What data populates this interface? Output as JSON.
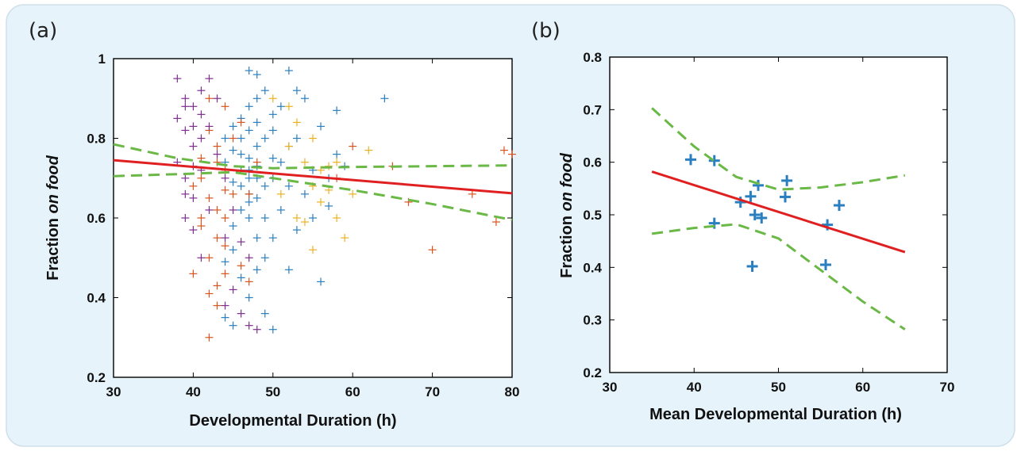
{
  "colors": {
    "background_panel": "#e6f3fa",
    "panel_border": "#cfe0ea",
    "fit_line": "#e02020",
    "confidence_band": "#6ab845",
    "series_blue": "#2a7fc1",
    "series_orange": "#d9541e",
    "series_yellow": "#edb120",
    "series_purple": "#7e2f8e"
  },
  "chart_data": [
    {
      "panel_label": "(a)",
      "type": "scatter",
      "xlabel": "Developmental Duration (h)",
      "ylabel": {
        "prefix": "Fraction ",
        "italic": "on food"
      },
      "xlim": [
        30,
        80
      ],
      "ylim": [
        0.2,
        1.0
      ],
      "xticks": [
        "30",
        "40",
        "50",
        "60",
        "70",
        "80"
      ],
      "yticks": [
        "0.2",
        "0.4",
        "0.6",
        "0.8",
        "1"
      ],
      "grid": false,
      "series": [
        {
          "color": "#2a7fc1",
          "points": [
            [
              46,
              0.85
            ],
            [
              47,
              0.82
            ],
            [
              48,
              0.9
            ],
            [
              45,
              0.77
            ],
            [
              47,
              0.75
            ],
            [
              49,
              0.8
            ],
            [
              50,
              0.86
            ],
            [
              48,
              0.7
            ],
            [
              46,
              0.68
            ],
            [
              47,
              0.64
            ],
            [
              52,
              0.78
            ],
            [
              53,
              0.92
            ],
            [
              51,
              0.88
            ],
            [
              49,
              0.92
            ],
            [
              48,
              0.96
            ],
            [
              47,
              0.97
            ],
            [
              52,
              0.97
            ],
            [
              54,
              0.9
            ],
            [
              50,
              0.75
            ],
            [
              46,
              0.72
            ],
            [
              47,
              0.6
            ],
            [
              45,
              0.58
            ],
            [
              48,
              0.55
            ],
            [
              49,
              0.5
            ],
            [
              46,
              0.45
            ],
            [
              47,
              0.4
            ],
            [
              44,
              0.35
            ],
            [
              45,
              0.33
            ],
            [
              49,
              0.36
            ],
            [
              50,
              0.32
            ],
            [
              52,
              0.47
            ],
            [
              56,
              0.44
            ],
            [
              55,
              0.6
            ],
            [
              57,
              0.7
            ],
            [
              58,
              0.76
            ],
            [
              56,
              0.83
            ],
            [
              58,
              0.87
            ],
            [
              64,
              0.9
            ],
            [
              59,
              0.73
            ],
            [
              54,
              0.66
            ],
            [
              51,
              0.62
            ],
            [
              50,
              0.55
            ],
            [
              48,
              0.65
            ],
            [
              47,
              0.72
            ],
            [
              48,
              0.78
            ],
            [
              46,
              0.8
            ],
            [
              45,
              0.69
            ],
            [
              44,
              0.74
            ],
            [
              47,
              0.88
            ],
            [
              48,
              0.84
            ],
            [
              50,
              0.7
            ],
            [
              51,
              0.74
            ],
            [
              49,
              0.6
            ],
            [
              46,
              0.62
            ],
            [
              45,
              0.52
            ],
            [
              48,
              0.47
            ],
            [
              44,
              0.49
            ],
            [
              53,
              0.8
            ],
            [
              55,
              0.72
            ],
            [
              57,
              0.63
            ],
            [
              50,
              0.82
            ],
            [
              49,
              0.68
            ],
            [
              47,
              0.7
            ],
            [
              46,
              0.76
            ],
            [
              48,
              0.73
            ],
            [
              52,
              0.68
            ],
            [
              53,
              0.57
            ],
            [
              45,
              0.83
            ],
            [
              44,
              0.8
            ],
            [
              47,
              0.66
            ]
          ]
        },
        {
          "color": "#d9541e",
          "points": [
            [
              42,
              0.82
            ],
            [
              43,
              0.78
            ],
            [
              44,
              0.72
            ],
            [
              41,
              0.7
            ],
            [
              42,
              0.65
            ],
            [
              43,
              0.62
            ],
            [
              44,
              0.6
            ],
            [
              40,
              0.68
            ],
            [
              41,
              0.58
            ],
            [
              43,
              0.55
            ],
            [
              42,
              0.5
            ],
            [
              44,
              0.46
            ],
            [
              43,
              0.43
            ],
            [
              42,
              0.41
            ],
            [
              43,
              0.38
            ],
            [
              42,
              0.3
            ],
            [
              45,
              0.8
            ],
            [
              46,
              0.84
            ],
            [
              44,
              0.88
            ],
            [
              42,
              0.9
            ],
            [
              45,
              0.66
            ],
            [
              40,
              0.46
            ],
            [
              46,
              0.48
            ],
            [
              47,
              0.44
            ],
            [
              44,
              0.53
            ],
            [
              41,
              0.6
            ],
            [
              47,
              0.66
            ],
            [
              48,
              0.74
            ],
            [
              78,
              0.59
            ],
            [
              79,
              0.77
            ],
            [
              80,
              0.76
            ],
            [
              75,
              0.66
            ],
            [
              70,
              0.52
            ],
            [
              67,
              0.64
            ],
            [
              65,
              0.73
            ],
            [
              60,
              0.78
            ],
            [
              58,
              0.7
            ],
            [
              43,
              0.74
            ],
            [
              44,
              0.67
            ],
            [
              41,
              0.75
            ]
          ]
        },
        {
          "color": "#edb120",
          "points": [
            [
              52,
              0.78
            ],
            [
              54,
              0.74
            ],
            [
              55,
              0.68
            ],
            [
              53,
              0.84
            ],
            [
              56,
              0.64
            ],
            [
              58,
              0.6
            ],
            [
              59,
              0.55
            ],
            [
              57,
              0.67
            ],
            [
              55,
              0.52
            ],
            [
              53,
              0.6
            ],
            [
              51,
              0.66
            ],
            [
              54,
              0.59
            ],
            [
              56,
              0.72
            ],
            [
              60,
              0.66
            ],
            [
              62,
              0.77
            ],
            [
              57,
              0.73
            ],
            [
              50,
              0.9
            ],
            [
              52,
              0.88
            ],
            [
              55,
              0.8
            ],
            [
              58,
              0.74
            ]
          ]
        },
        {
          "color": "#7e2f8e",
          "points": [
            [
              38,
              0.95
            ],
            [
              39,
              0.9
            ],
            [
              40,
              0.88
            ],
            [
              41,
              0.86
            ],
            [
              39,
              0.82
            ],
            [
              40,
              0.78
            ],
            [
              38,
              0.74
            ],
            [
              39,
              0.7
            ],
            [
              41,
              0.72
            ],
            [
              40,
              0.65
            ],
            [
              39,
              0.6
            ],
            [
              40,
              0.57
            ],
            [
              42,
              0.95
            ],
            [
              41,
              0.92
            ],
            [
              43,
              0.9
            ],
            [
              42,
              0.83
            ],
            [
              38,
              0.85
            ],
            [
              39,
              0.88
            ],
            [
              41,
              0.8
            ],
            [
              40,
              0.83
            ],
            [
              43,
              0.76
            ],
            [
              44,
              0.7
            ],
            [
              45,
              0.62
            ],
            [
              46,
              0.54
            ],
            [
              44,
              0.38
            ],
            [
              45,
              0.42
            ],
            [
              46,
              0.36
            ],
            [
              47,
              0.33
            ],
            [
              48,
              0.32
            ],
            [
              47,
              0.5
            ],
            [
              44,
              0.55
            ],
            [
              41,
              0.5
            ],
            [
              42,
              0.62
            ],
            [
              40,
              0.73
            ],
            [
              39,
              0.66
            ]
          ]
        }
      ],
      "fit_line": [
        [
          30,
          0.745
        ],
        [
          80,
          0.662
        ]
      ],
      "confidence_band": {
        "upper": [
          [
            30,
            0.785
          ],
          [
            38,
            0.75
          ],
          [
            45,
            0.73
          ],
          [
            50,
            0.725
          ],
          [
            60,
            0.728
          ],
          [
            70,
            0.73
          ],
          [
            80,
            0.732
          ]
        ],
        "lower": [
          [
            30,
            0.705
          ],
          [
            38,
            0.71
          ],
          [
            45,
            0.715
          ],
          [
            50,
            0.7
          ],
          [
            60,
            0.67
          ],
          [
            70,
            0.635
          ],
          [
            80,
            0.595
          ]
        ]
      }
    },
    {
      "panel_label": "(b)",
      "type": "scatter",
      "xlabel": "Mean Developmental Duration (h)",
      "ylabel": {
        "prefix": "Fraction ",
        "italic": "on food"
      },
      "xlim": [
        30,
        70
      ],
      "ylim": [
        0.2,
        0.8
      ],
      "xticks": [
        "30",
        "40",
        "50",
        "60",
        "70"
      ],
      "yticks": [
        "0.2",
        "0.3",
        "0.4",
        "0.5",
        "0.6",
        "0.7",
        "0.8"
      ],
      "grid": false,
      "series": [
        {
          "color": "#2a7fc1",
          "points": [
            [
              39.6,
              0.605
            ],
            [
              42.4,
              0.603
            ],
            [
              42.4,
              0.484
            ],
            [
              45.5,
              0.524
            ],
            [
              46.7,
              0.535
            ],
            [
              47.2,
              0.5
            ],
            [
              47.6,
              0.556
            ],
            [
              48.0,
              0.494
            ],
            [
              46.9,
              0.402
            ],
            [
              50.8,
              0.534
            ],
            [
              51.0,
              0.565
            ],
            [
              55.8,
              0.481
            ],
            [
              55.6,
              0.405
            ],
            [
              57.2,
              0.518
            ]
          ]
        }
      ],
      "fit_line": [
        [
          35,
          0.582
        ],
        [
          65,
          0.429
        ]
      ],
      "confidence_band": {
        "upper": [
          [
            35,
            0.703
          ],
          [
            40,
            0.63
          ],
          [
            45,
            0.572
          ],
          [
            50,
            0.548
          ],
          [
            55,
            0.552
          ],
          [
            60,
            0.562
          ],
          [
            65,
            0.575
          ]
        ],
        "lower": [
          [
            35,
            0.464
          ],
          [
            40,
            0.475
          ],
          [
            45,
            0.482
          ],
          [
            50,
            0.455
          ],
          [
            55,
            0.395
          ],
          [
            60,
            0.335
          ],
          [
            65,
            0.282
          ]
        ]
      }
    }
  ]
}
